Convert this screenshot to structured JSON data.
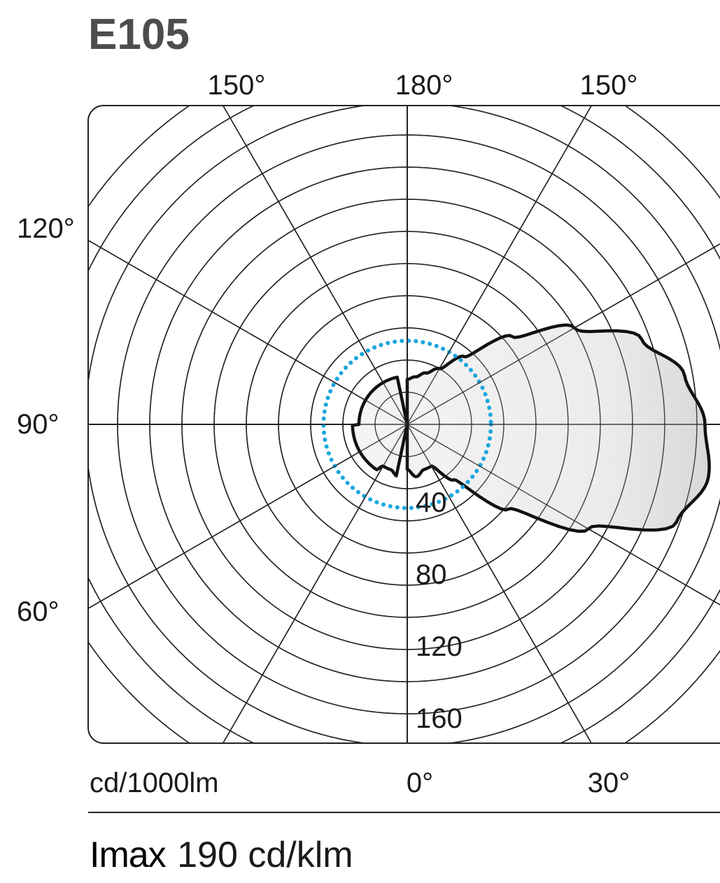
{
  "title": "E105",
  "chart_data": {
    "type": "polar",
    "unit_label": "cd/1000lm",
    "radial_ticks": [
      40,
      80,
      120,
      160
    ],
    "angle_labels": {
      "top": [
        "150°",
        "180°",
        "150°"
      ],
      "left": [
        "120°",
        "90°",
        "60°"
      ],
      "bottom": [
        "0°",
        "30°"
      ]
    },
    "series": [
      {
        "style": "solid-black-filled",
        "angles_deg": [
          0,
          10,
          20,
          30,
          40,
          50,
          60,
          70,
          80,
          90,
          100,
          110,
          120,
          130,
          140,
          150,
          160,
          170,
          180
        ],
        "values": [
          28,
          33,
          30,
          30,
          45,
          82,
          130,
          178,
          190,
          185,
          175,
          155,
          120,
          85,
          55,
          40,
          34,
          30,
          28
        ]
      },
      {
        "style": "dotted-cyan",
        "angles_deg": [
          0,
          30,
          60,
          90,
          120,
          150,
          180
        ],
        "values": [
          52,
          52,
          52,
          52,
          52,
          52,
          52
        ]
      }
    ]
  },
  "footer": {
    "imax_key": "Imax",
    "imax_value": "190 cd/klm"
  }
}
